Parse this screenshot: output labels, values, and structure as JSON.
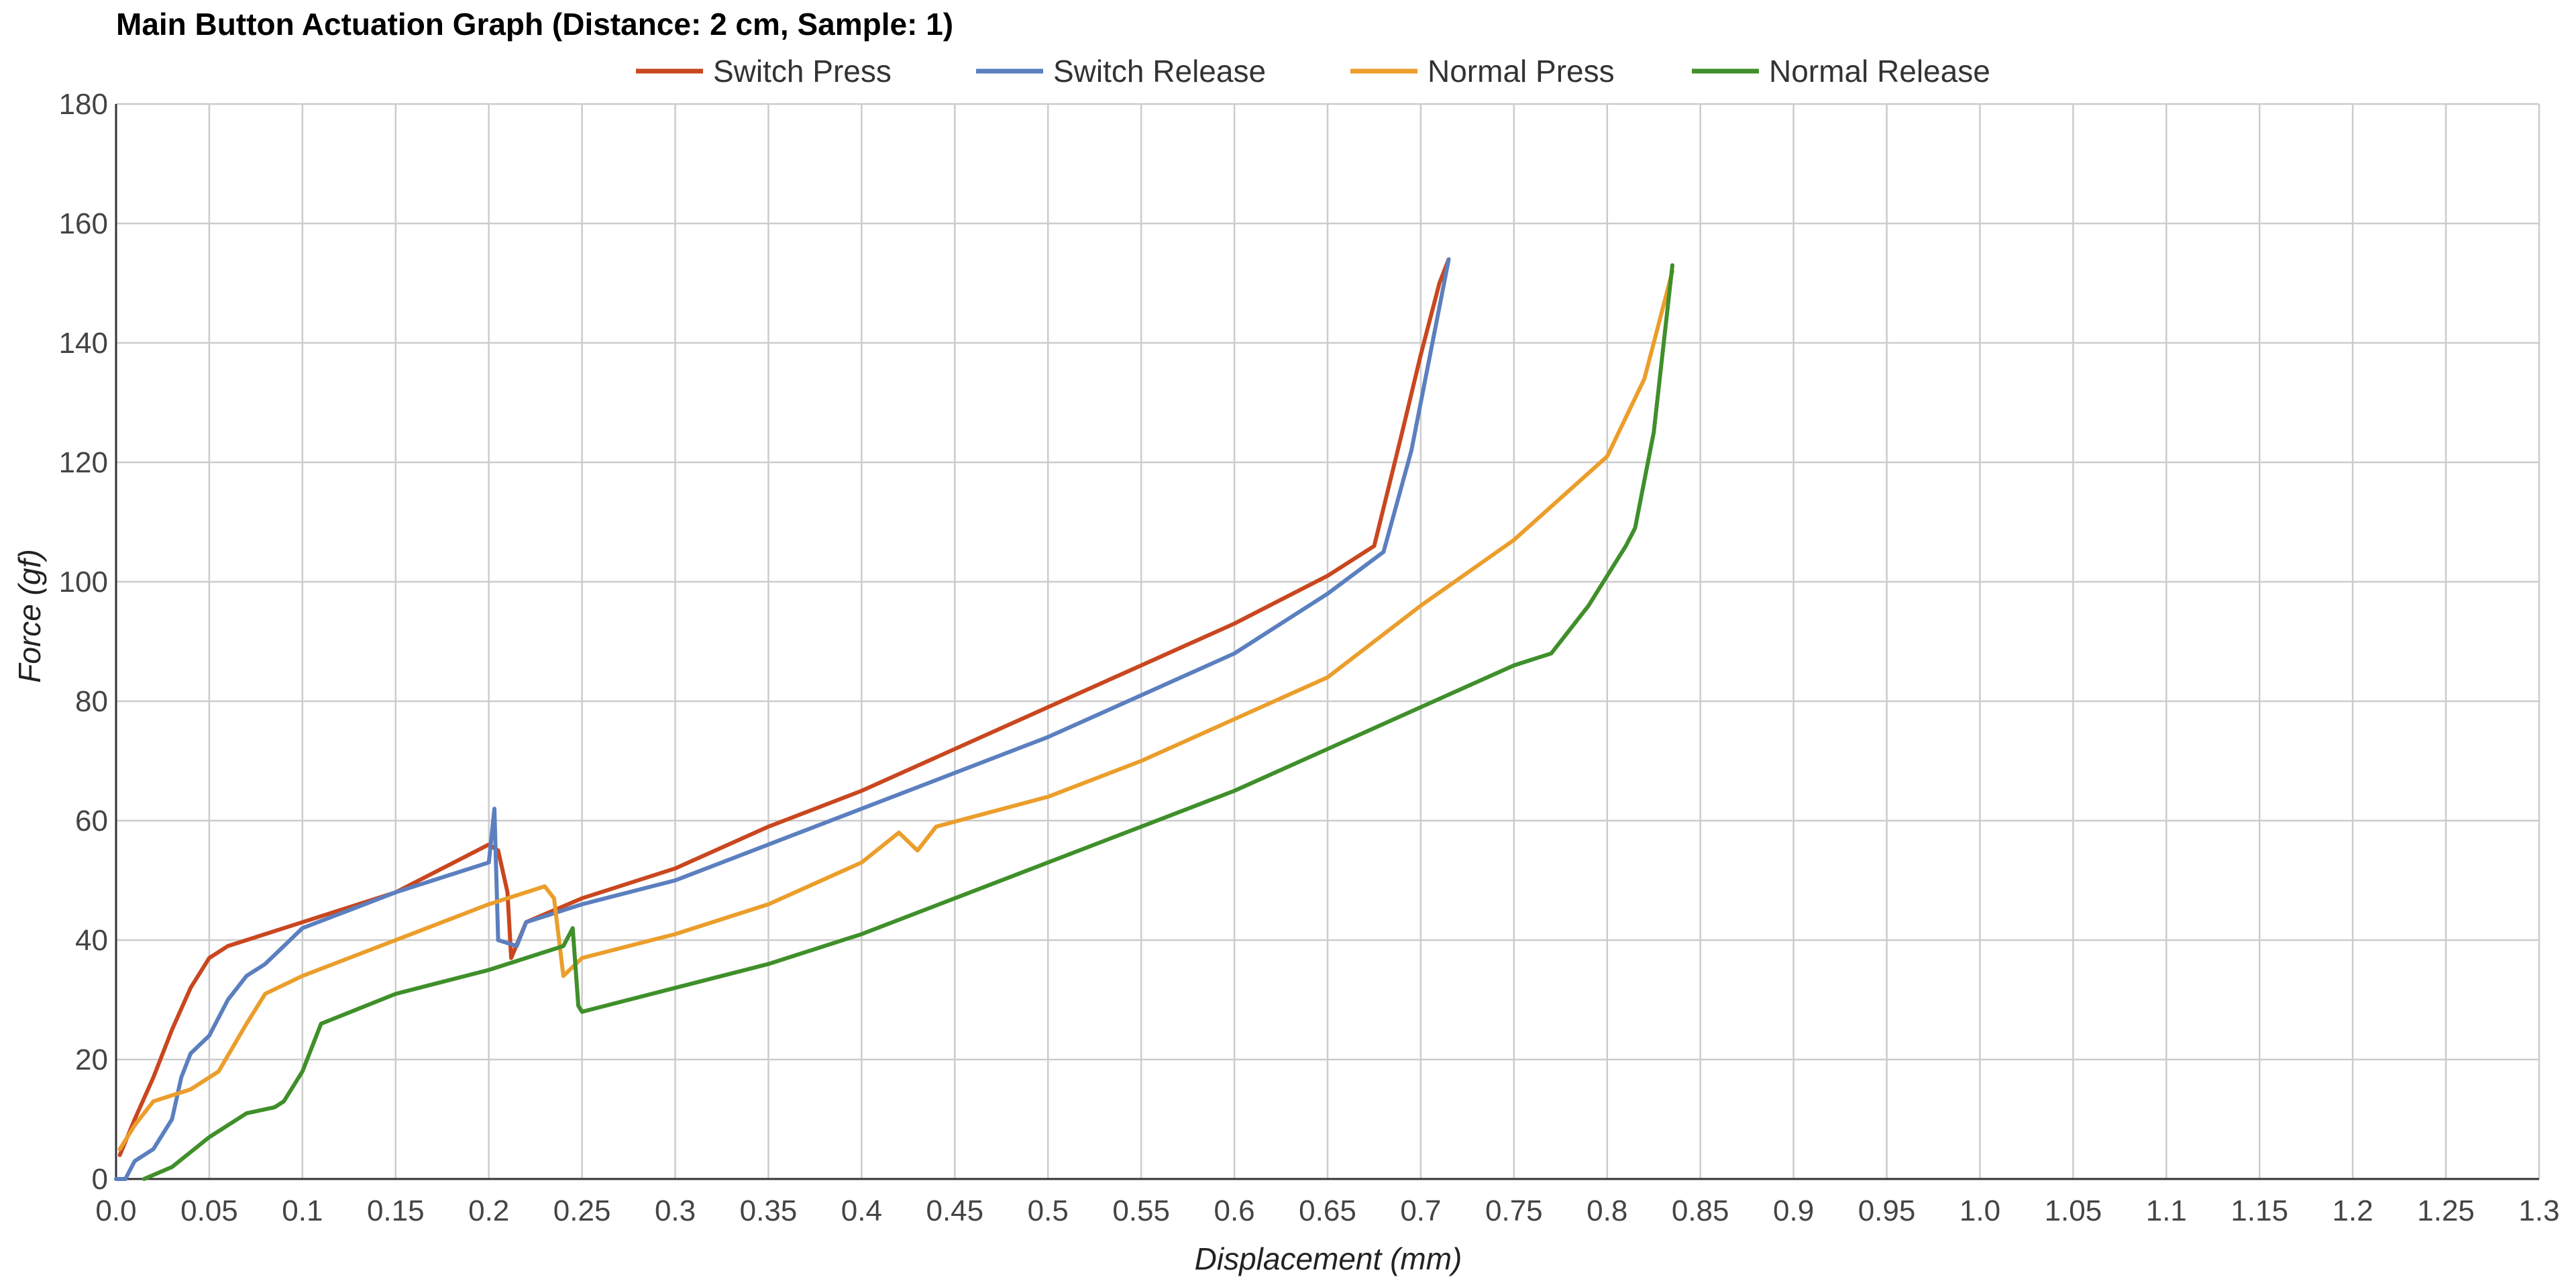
{
  "chart_data": {
    "type": "line",
    "title": "Main Button Actuation Graph (Distance: 2 cm, Sample: 1)",
    "xlabel": "Displacement (mm)",
    "ylabel": "Force (gf)",
    "xlim": [
      0,
      1.3
    ],
    "ylim": [
      0,
      180
    ],
    "x_ticks": [
      "0.0",
      "0.05",
      "0.1",
      "0.15",
      "0.2",
      "0.25",
      "0.3",
      "0.35",
      "0.4",
      "0.45",
      "0.5",
      "0.55",
      "0.6",
      "0.65",
      "0.7",
      "0.75",
      "0.8",
      "0.85",
      "0.9",
      "0.95",
      "1.0",
      "1.05",
      "1.1",
      "1.15",
      "1.2",
      "1.25",
      "1.3"
    ],
    "y_ticks": [
      "0",
      "20",
      "40",
      "60",
      "80",
      "100",
      "120",
      "140",
      "160",
      "180"
    ],
    "grid": true,
    "legend_position": "top",
    "series": [
      {
        "name": "Switch Press",
        "color": "#c9471f",
        "points": [
          [
            0.002,
            4
          ],
          [
            0.01,
            10
          ],
          [
            0.02,
            17
          ],
          [
            0.03,
            25
          ],
          [
            0.04,
            32
          ],
          [
            0.05,
            37
          ],
          [
            0.06,
            39
          ],
          [
            0.1,
            43
          ],
          [
            0.15,
            48
          ],
          [
            0.2,
            56
          ],
          [
            0.205,
            55
          ],
          [
            0.21,
            48
          ],
          [
            0.212,
            37
          ],
          [
            0.22,
            43
          ],
          [
            0.25,
            47
          ],
          [
            0.3,
            52
          ],
          [
            0.35,
            59
          ],
          [
            0.4,
            65
          ],
          [
            0.45,
            72
          ],
          [
            0.5,
            79
          ],
          [
            0.55,
            86
          ],
          [
            0.6,
            93
          ],
          [
            0.65,
            101
          ],
          [
            0.675,
            106
          ],
          [
            0.69,
            125
          ],
          [
            0.7,
            138
          ],
          [
            0.71,
            150
          ],
          [
            0.715,
            154
          ]
        ]
      },
      {
        "name": "Switch Release",
        "color": "#5b7fbf",
        "points": [
          [
            0.0,
            0
          ],
          [
            0.005,
            0
          ],
          [
            0.01,
            3
          ],
          [
            0.02,
            5
          ],
          [
            0.03,
            10
          ],
          [
            0.035,
            17
          ],
          [
            0.04,
            21
          ],
          [
            0.05,
            24
          ],
          [
            0.06,
            30
          ],
          [
            0.07,
            34
          ],
          [
            0.08,
            36
          ],
          [
            0.09,
            39
          ],
          [
            0.1,
            42
          ],
          [
            0.15,
            48
          ],
          [
            0.2,
            53
          ],
          [
            0.203,
            62
          ],
          [
            0.205,
            40
          ],
          [
            0.215,
            39
          ],
          [
            0.22,
            43
          ],
          [
            0.25,
            46
          ],
          [
            0.3,
            50
          ],
          [
            0.35,
            56
          ],
          [
            0.4,
            62
          ],
          [
            0.45,
            68
          ],
          [
            0.5,
            74
          ],
          [
            0.55,
            81
          ],
          [
            0.6,
            88
          ],
          [
            0.65,
            98
          ],
          [
            0.68,
            105
          ],
          [
            0.695,
            122
          ],
          [
            0.705,
            138
          ],
          [
            0.715,
            154
          ]
        ]
      },
      {
        "name": "Normal Press",
        "color": "#eb9e2b",
        "points": [
          [
            0.002,
            5
          ],
          [
            0.01,
            9
          ],
          [
            0.02,
            13
          ],
          [
            0.04,
            15
          ],
          [
            0.05,
            17
          ],
          [
            0.055,
            18
          ],
          [
            0.07,
            26
          ],
          [
            0.08,
            31
          ],
          [
            0.1,
            34
          ],
          [
            0.15,
            40
          ],
          [
            0.2,
            46
          ],
          [
            0.23,
            49
          ],
          [
            0.235,
            47
          ],
          [
            0.24,
            34
          ],
          [
            0.25,
            37
          ],
          [
            0.3,
            41
          ],
          [
            0.35,
            46
          ],
          [
            0.4,
            53
          ],
          [
            0.42,
            58
          ],
          [
            0.43,
            55
          ],
          [
            0.44,
            59
          ],
          [
            0.5,
            64
          ],
          [
            0.55,
            70
          ],
          [
            0.6,
            77
          ],
          [
            0.65,
            84
          ],
          [
            0.7,
            96
          ],
          [
            0.75,
            107
          ],
          [
            0.8,
            121
          ],
          [
            0.82,
            134
          ],
          [
            0.835,
            152
          ]
        ]
      },
      {
        "name": "Normal Release",
        "color": "#3f8f2a",
        "points": [
          [
            0.015,
            0
          ],
          [
            0.03,
            2
          ],
          [
            0.05,
            7
          ],
          [
            0.07,
            11
          ],
          [
            0.085,
            12
          ],
          [
            0.09,
            13
          ],
          [
            0.1,
            18
          ],
          [
            0.11,
            26
          ],
          [
            0.15,
            31
          ],
          [
            0.2,
            35
          ],
          [
            0.24,
            39
          ],
          [
            0.245,
            42
          ],
          [
            0.248,
            29
          ],
          [
            0.25,
            28
          ],
          [
            0.3,
            32
          ],
          [
            0.35,
            36
          ],
          [
            0.4,
            41
          ],
          [
            0.45,
            47
          ],
          [
            0.5,
            53
          ],
          [
            0.55,
            59
          ],
          [
            0.6,
            65
          ],
          [
            0.65,
            72
          ],
          [
            0.7,
            79
          ],
          [
            0.75,
            86
          ],
          [
            0.77,
            88
          ],
          [
            0.79,
            96
          ],
          [
            0.81,
            106
          ],
          [
            0.815,
            109
          ],
          [
            0.825,
            125
          ],
          [
            0.835,
            153
          ]
        ]
      }
    ]
  }
}
